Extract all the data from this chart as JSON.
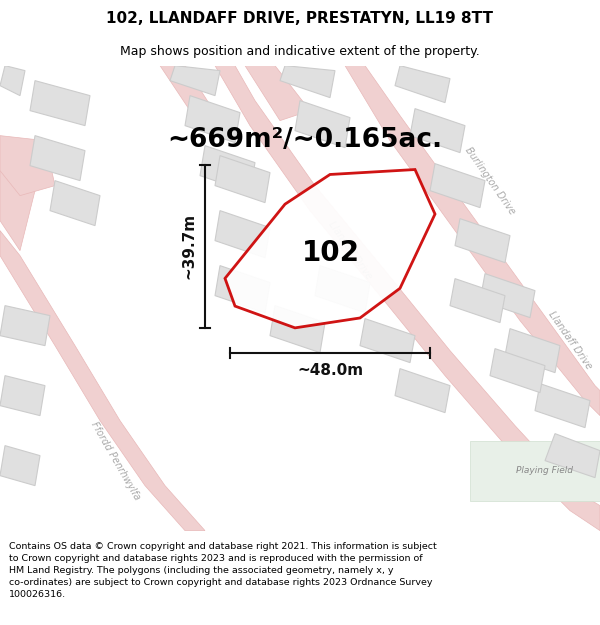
{
  "title": "102, LLANDAFF DRIVE, PRESTATYN, LL19 8TT",
  "subtitle": "Map shows position and indicative extent of the property.",
  "area_text": "~669m²/~0.165ac.",
  "width_label": "~48.0m",
  "height_label": "~39.7m",
  "plot_number": "102",
  "footer": "Contains OS data © Crown copyright and database right 2021. This information is subject to Crown copyright and database rights 2023 and is reproduced with the permission of HM Land Registry. The polygons (including the associated geometry, namely x, y co-ordinates) are subject to Crown copyright and database rights 2023 Ordnance Survey 100026316.",
  "bg_color": "#f7f7f7",
  "road_color": "#f0d0d0",
  "road_edge_color": "#e8b8b8",
  "building_color": "#e0e0e0",
  "building_edge_color": "#cccccc",
  "plot_outline_color": "#cc0000",
  "plot_fill_color": "#ffffff",
  "playing_field_color": "#e8f0e8",
  "dimension_color": "#111111",
  "road_label_color": "#aaaaaa",
  "title_fontsize": 11,
  "subtitle_fontsize": 9,
  "area_fontsize": 19,
  "plot_number_fontsize": 20,
  "footer_fontsize": 6.8,
  "dim_fontsize": 11
}
